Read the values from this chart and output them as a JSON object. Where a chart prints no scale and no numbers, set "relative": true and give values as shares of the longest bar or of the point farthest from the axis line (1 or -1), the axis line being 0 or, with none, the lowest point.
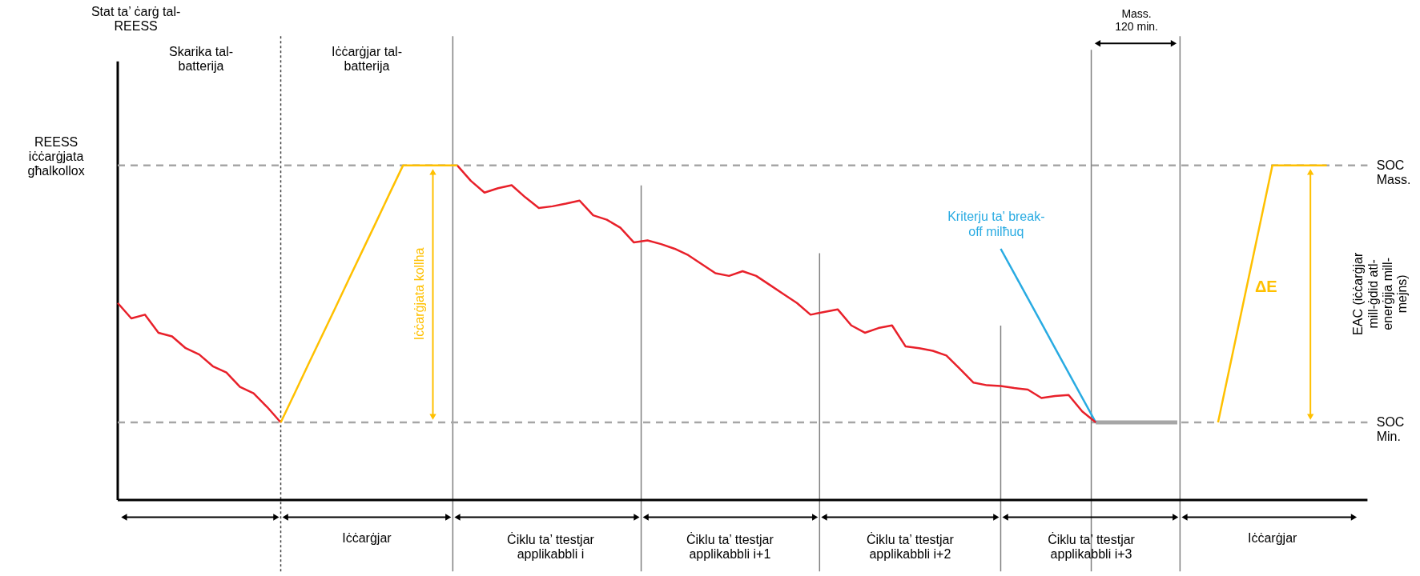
{
  "chart_data": {
    "type": "line",
    "relative": true,
    "line_style": "solid",
    "categories": [
      null,
      null,
      null,
      null,
      null,
      null,
      null,
      null,
      null,
      null,
      null,
      null,
      null,
      null,
      null,
      null,
      null,
      null,
      null,
      null,
      null,
      null,
      null,
      null,
      null,
      null,
      null,
      null,
      null,
      null,
      null,
      null,
      null,
      null,
      null,
      null,
      null,
      null,
      null,
      null,
      null,
      null,
      null,
      null,
      null,
      null,
      null,
      null,
      null,
      null,
      null,
      null,
      null,
      null,
      null,
      null,
      null,
      null,
      null,
      null,
      null,
      null,
      null,
      null,
      null,
      null,
      null,
      null,
      null,
      null,
      null,
      null,
      null,
      null,
      null,
      null,
      null,
      null,
      null,
      null,
      null,
      null,
      null,
      null,
      null,
      null,
      null,
      null,
      null,
      null,
      null,
      null,
      null
    ],
    "series": [
      {
        "color": "#a6a6a6",
        "values": [
          null,
          null,
          null,
          null,
          null,
          null,
          null,
          null,
          null,
          null,
          null,
          null,
          null,
          null,
          null,
          null,
          null,
          null,
          null,
          null,
          null,
          null,
          null,
          null,
          null,
          null,
          null,
          null,
          null,
          null,
          null,
          null,
          null,
          null,
          null,
          null,
          null,
          null,
          null,
          null,
          null,
          null,
          null,
          null,
          null,
          null,
          null,
          null,
          null,
          null,
          null,
          null,
          null,
          null,
          null,
          null,
          null,
          null,
          null,
          null,
          null,
          null,
          null,
          null,
          null,
          null,
          null,
          null,
          null,
          null,
          null,
          null,
          0.232,
          0.232,
          0.232,
          0.232,
          0.232,
          0.232,
          0.232,
          null,
          null,
          null,
          null,
          null,
          null,
          null,
          null,
          null,
          null,
          null,
          null,
          null,
          null
        ]
      },
      {
        "color": "#29abe2",
        "values": [
          null,
          null,
          null,
          null,
          null,
          null,
          null,
          null,
          null,
          null,
          null,
          null,
          null,
          null,
          null,
          null,
          null,
          null,
          null,
          null,
          null,
          null,
          null,
          null,
          null,
          null,
          null,
          null,
          null,
          null,
          null,
          null,
          null,
          null,
          null,
          null,
          null,
          null,
          null,
          null,
          null,
          null,
          null,
          null,
          null,
          null,
          null,
          null,
          null,
          null,
          null,
          null,
          null,
          null,
          null,
          null,
          null,
          null,
          null,
          null,
          null,
          null,
          null,
          null,
          null,
          0.751,
          0.677,
          0.603,
          0.529,
          0.454,
          0.38,
          0.306,
          0.232,
          null,
          null,
          null,
          null,
          null,
          null,
          null,
          null,
          null,
          null,
          null,
          null,
          null,
          null,
          null,
          null,
          null,
          null,
          null,
          null
        ]
      },
      {
        "color": "#e8202a",
        "values": [
          0.589,
          0.543,
          0.554,
          0.5,
          0.489,
          0.454,
          0.435,
          0.4,
          0.381,
          0.338,
          0.319,
          0.278,
          0.232,
          null,
          null,
          null,
          null,
          null,
          null,
          null,
          null,
          null,
          null,
          null,
          null,
          1.0,
          0.954,
          0.919,
          0.932,
          0.941,
          0.905,
          0.873,
          0.878,
          0.886,
          0.895,
          0.851,
          0.838,
          0.814,
          0.77,
          0.776,
          0.765,
          0.751,
          0.732,
          0.705,
          0.678,
          0.67,
          0.684,
          0.67,
          0.643,
          0.616,
          0.589,
          0.554,
          0.562,
          0.57,
          0.522,
          0.5,
          0.514,
          0.522,
          0.459,
          0.454,
          0.446,
          0.432,
          0.392,
          0.351,
          0.343,
          0.341,
          0.335,
          0.33,
          0.305,
          0.311,
          0.314,
          0.265,
          0.232,
          null,
          null,
          null,
          null,
          null,
          null,
          null,
          null,
          null,
          null,
          null,
          null,
          null,
          null,
          null,
          null,
          null,
          null,
          null,
          null
        ]
      },
      {
        "color": "#ffc000",
        "values": [
          null,
          null,
          null,
          null,
          null,
          null,
          null,
          null,
          null,
          null,
          null,
          null,
          0.232,
          0.317,
          0.403,
          0.488,
          0.573,
          0.659,
          0.744,
          0.829,
          0.915,
          1.0,
          1.0,
          1.0,
          1.0,
          1.0,
          null,
          null,
          null,
          null,
          null,
          null,
          null,
          null,
          null,
          null,
          null,
          null,
          null,
          null,
          null,
          null,
          null,
          null,
          null,
          null,
          null,
          null,
          null,
          null,
          null,
          null,
          null,
          null,
          null,
          null,
          null,
          null,
          null,
          null,
          null,
          null,
          null,
          null,
          null,
          null,
          null,
          null,
          null,
          null,
          null,
          null,
          null,
          null,
          null,
          null,
          null,
          null,
          null,
          null,
          null,
          0.232,
          0.424,
          0.616,
          0.808,
          1.0,
          1.0,
          1.0,
          1.0,
          1.0,
          null,
          null,
          null
        ]
      }
    ],
    "ref_lines": [
      {
        "axis": "y",
        "value": 1.0,
        "label": "SOC Mass.",
        "color": "#a6a6a6",
        "line_style": "dashed"
      },
      {
        "axis": "y",
        "value": 0.232,
        "label": "SOC Min.",
        "color": "#a6a6a6",
        "line_style": "dashed"
      }
    ],
    "annotations": [
      "Skarika tal-\nbatterija",
      "Iċċarġjar tal-\nbatterija",
      "Iċċarġjata kollha",
      "Mass.\n120 min.",
      "Kriterju ta' break-\noff milħuq",
      "ΔE",
      "EAC (iċċarġjar\nmill-ġdid atl-\nenerġija mill-\nmejns)",
      "REESS\niċċarġjata\ngħalkollox",
      "Iċċarġjar",
      "Ċiklu ta’ ttestjar\napplikabbli i",
      "Ċiklu ta’ ttestjar\napplikabbli i+1",
      "Ċiklu ta’ ttestjar\napplikabbli i+2",
      "Ċiklu ta’ ttestjar\napplikabbli i+3",
      "Iċċarġjar",
      "Stat ta’ ċarġ tal-\nREESS"
    ]
  }
}
